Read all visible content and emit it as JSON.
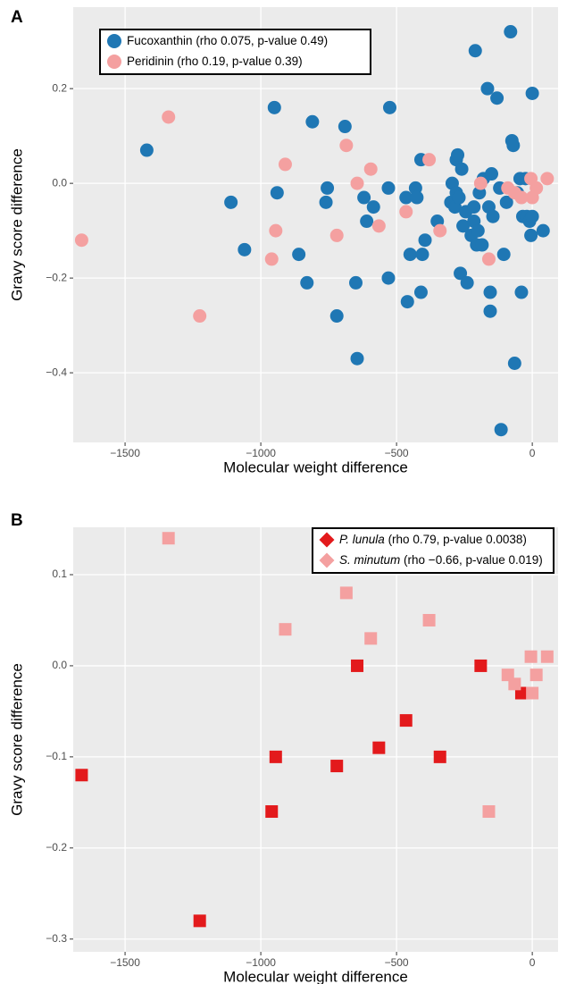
{
  "chart_data": [
    {
      "type": "scatter",
      "panel_label": "A",
      "xlabel": "Molecular weight difference",
      "ylabel": "Gravy score difference",
      "marker": "circle",
      "grid": true,
      "legend": "top-left",
      "xlim": [
        -1691,
        95
      ],
      "ylim": [
        -0.547,
        0.372
      ],
      "xticks": [
        {
          "value": -1500,
          "label": "−1500"
        },
        {
          "value": -1000,
          "label": "−1000"
        },
        {
          "value": -500,
          "label": "−500"
        },
        0
      ],
      "yticks": [
        {
          "value": -0.4,
          "label": "−0.4"
        },
        {
          "value": -0.2,
          "label": "−0.2"
        },
        {
          "value": 0,
          "label": "0.0"
        },
        0.2
      ],
      "series": [
        {
          "name": "Fucoxanthin",
          "stats": "(rho 0.075, p-value 0.49)",
          "color": "#1f77b4",
          "x": [
            -1420,
            -1110,
            -1060,
            -950,
            -940,
            -810,
            -860,
            -830,
            -760,
            -755,
            -720,
            -690,
            -650,
            -645,
            -620,
            -610,
            -585,
            -530,
            -525,
            -530,
            -465,
            -460,
            -450,
            -430,
            -425,
            -410,
            -405,
            -410,
            -395,
            -350,
            -300,
            -295,
            -285,
            -280,
            -275,
            -280,
            -270,
            -265,
            -260,
            -255,
            -245,
            -240,
            -225,
            -215,
            -215,
            -210,
            -205,
            -200,
            -195,
            -185,
            -180,
            -165,
            -160,
            -155,
            -155,
            -150,
            -145,
            -130,
            -120,
            -115,
            -105,
            -95,
            -80,
            -75,
            -70,
            -65,
            -55,
            -45,
            -40,
            -35,
            -25,
            -20,
            -10,
            -5,
            0,
            0,
            40
          ],
          "values": [
            0.07,
            -0.04,
            -0.14,
            0.16,
            -0.02,
            0.13,
            -0.15,
            -0.21,
            -0.04,
            -0.01,
            -0.28,
            0.12,
            -0.21,
            -0.37,
            -0.03,
            -0.08,
            -0.05,
            -0.01,
            0.16,
            -0.2,
            -0.03,
            -0.25,
            -0.15,
            -0.01,
            -0.03,
            0.05,
            -0.15,
            -0.23,
            -0.12,
            -0.08,
            -0.04,
            0,
            -0.05,
            0.05,
            0.06,
            -0.02,
            -0.03,
            -0.19,
            0.03,
            -0.09,
            -0.06,
            -0.21,
            -0.11,
            -0.05,
            -0.08,
            0.28,
            -0.13,
            -0.1,
            -0.02,
            -0.13,
            0.01,
            0.2,
            -0.05,
            -0.23,
            -0.27,
            0.02,
            -0.07,
            0.18,
            -0.01,
            -0.52,
            -0.15,
            -0.04,
            0.32,
            0.09,
            0.08,
            -0.38,
            -0.02,
            0.01,
            -0.23,
            -0.07,
            0.01,
            -0.07,
            -0.08,
            -0.11,
            0.19,
            -0.07,
            -0.1
          ]
        },
        {
          "name": "Peridinin",
          "stats": "(rho 0.19, p-value 0.39)",
          "color": "#f4a0a0",
          "x": [
            -1660,
            -1340,
            -1225,
            -960,
            -945,
            -910,
            -720,
            -685,
            -645,
            -595,
            -565,
            -465,
            -380,
            -340,
            -190,
            -160,
            -90,
            -65,
            -40,
            0,
            -5,
            15,
            55
          ],
          "values": [
            -0.12,
            0.14,
            -0.28,
            -0.16,
            -0.1,
            0.04,
            -0.11,
            0.08,
            0,
            0.03,
            -0.09,
            -0.06,
            0.05,
            -0.1,
            0,
            -0.16,
            -0.01,
            -0.02,
            -0.03,
            -0.03,
            0.01,
            -0.01,
            0.01
          ]
        }
      ]
    },
    {
      "type": "scatter",
      "panel_label": "B",
      "xlabel": "Molecular weight difference",
      "ylabel": "Gravy score difference",
      "marker": "square",
      "grid": true,
      "legend": "top-right",
      "xlim": [
        -1691,
        95
      ],
      "ylim": [
        -0.314,
        0.152
      ],
      "xticks": [
        {
          "value": -1500,
          "label": "−1500"
        },
        {
          "value": -1000,
          "label": "−1000"
        },
        {
          "value": -500,
          "label": "−500"
        },
        0
      ],
      "yticks": [
        {
          "value": -0.3,
          "label": "−0.3"
        },
        {
          "value": -0.2,
          "label": "−0.2"
        },
        {
          "value": -0.1,
          "label": "−0.1"
        },
        {
          "value": 0,
          "label": "0.0"
        },
        0.1
      ],
      "series": [
        {
          "name": "P. lunula",
          "stats": "(rho 0.79, p-value 0.0038)",
          "color": "#e31a1c",
          "x": [
            -1660,
            -1225,
            -960,
            -945,
            -720,
            -645,
            -565,
            -465,
            -340,
            -190,
            -40
          ],
          "values": [
            -0.12,
            -0.28,
            -0.16,
            -0.1,
            -0.11,
            0,
            -0.09,
            -0.06,
            -0.1,
            0,
            -0.03
          ]
        },
        {
          "name": "S. minutum",
          "stats": "(rho −0.66, p-value 0.019)",
          "color": "#f4a0a0",
          "x": [
            -1340,
            -910,
            -685,
            -595,
            -380,
            -160,
            -90,
            -65,
            0,
            -5,
            15,
            55
          ],
          "values": [
            0.14,
            0.04,
            0.08,
            0.03,
            0.05,
            -0.16,
            -0.01,
            -0.02,
            -0.03,
            0.01,
            -0.01,
            0.01
          ]
        }
      ]
    }
  ]
}
